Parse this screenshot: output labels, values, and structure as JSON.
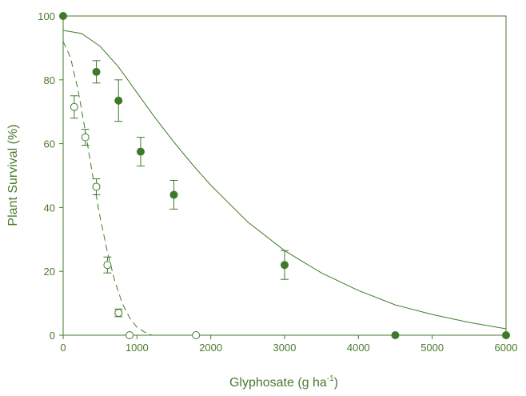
{
  "chart_data": {
    "type": "scatter",
    "title": "",
    "xlabel": "Glyphosate (g ha",
    "xlabel_sup": "-1",
    "xlabel_close": ")",
    "ylabel": "Plant Survival (%)",
    "xlim": [
      0,
      6000
    ],
    "ylim": [
      0,
      100
    ],
    "x_ticks": [
      "0",
      "1000",
      "2000",
      "3000",
      "4000",
      "5000",
      "6000"
    ],
    "y_ticks": [
      "0",
      "20",
      "40",
      "60",
      "80",
      "100"
    ],
    "grid": false,
    "colors": {
      "axis": "#4a7a2e",
      "marker": "#3f7a2a"
    },
    "series": [
      {
        "marker": "filled-circle",
        "line_style": "solid",
        "points": [
          {
            "x": 0,
            "y": 100,
            "err": 0
          },
          {
            "x": 450,
            "y": 82.5,
            "err": 3.5
          },
          {
            "x": 750,
            "y": 73.5,
            "err": 6.5
          },
          {
            "x": 1050,
            "y": 57.5,
            "err": 4.5
          },
          {
            "x": 1500,
            "y": 44,
            "err": 4.5
          },
          {
            "x": 3000,
            "y": 22,
            "err": 4.5
          },
          {
            "x": 4500,
            "y": 0,
            "err": 0
          },
          {
            "x": 6000,
            "y": 0,
            "err": 0
          }
        ],
        "curve": [
          [
            0,
            95.5
          ],
          [
            250,
            94.5
          ],
          [
            500,
            90.5
          ],
          [
            750,
            84
          ],
          [
            1000,
            76
          ],
          [
            1250,
            68
          ],
          [
            1500,
            60.5
          ],
          [
            1750,
            53.5
          ],
          [
            2000,
            47
          ],
          [
            2500,
            35.5
          ],
          [
            3000,
            26.5
          ],
          [
            3500,
            19.5
          ],
          [
            4000,
            14
          ],
          [
            4500,
            9.5
          ],
          [
            5000,
            6.5
          ],
          [
            5500,
            4
          ],
          [
            6000,
            2
          ]
        ]
      },
      {
        "marker": "open-circle",
        "line_style": "dashed",
        "points": [
          {
            "x": 150,
            "y": 71.5,
            "err": 3.5
          },
          {
            "x": 300,
            "y": 62,
            "err": 2.5
          },
          {
            "x": 450,
            "y": 46.5,
            "err": 2.5
          },
          {
            "x": 600,
            "y": 22,
            "err": 2.5
          },
          {
            "x": 750,
            "y": 7,
            "err": 1.2
          },
          {
            "x": 900,
            "y": 0,
            "err": 0
          },
          {
            "x": 1800,
            "y": 0,
            "err": 0
          }
        ],
        "curve": [
          [
            0,
            92
          ],
          [
            100,
            87
          ],
          [
            200,
            77
          ],
          [
            300,
            64
          ],
          [
            400,
            50
          ],
          [
            500,
            37
          ],
          [
            600,
            26
          ],
          [
            700,
            17
          ],
          [
            800,
            10
          ],
          [
            900,
            5.5
          ],
          [
            1000,
            2.5
          ],
          [
            1100,
            1
          ],
          [
            1200,
            0
          ]
        ]
      }
    ]
  }
}
